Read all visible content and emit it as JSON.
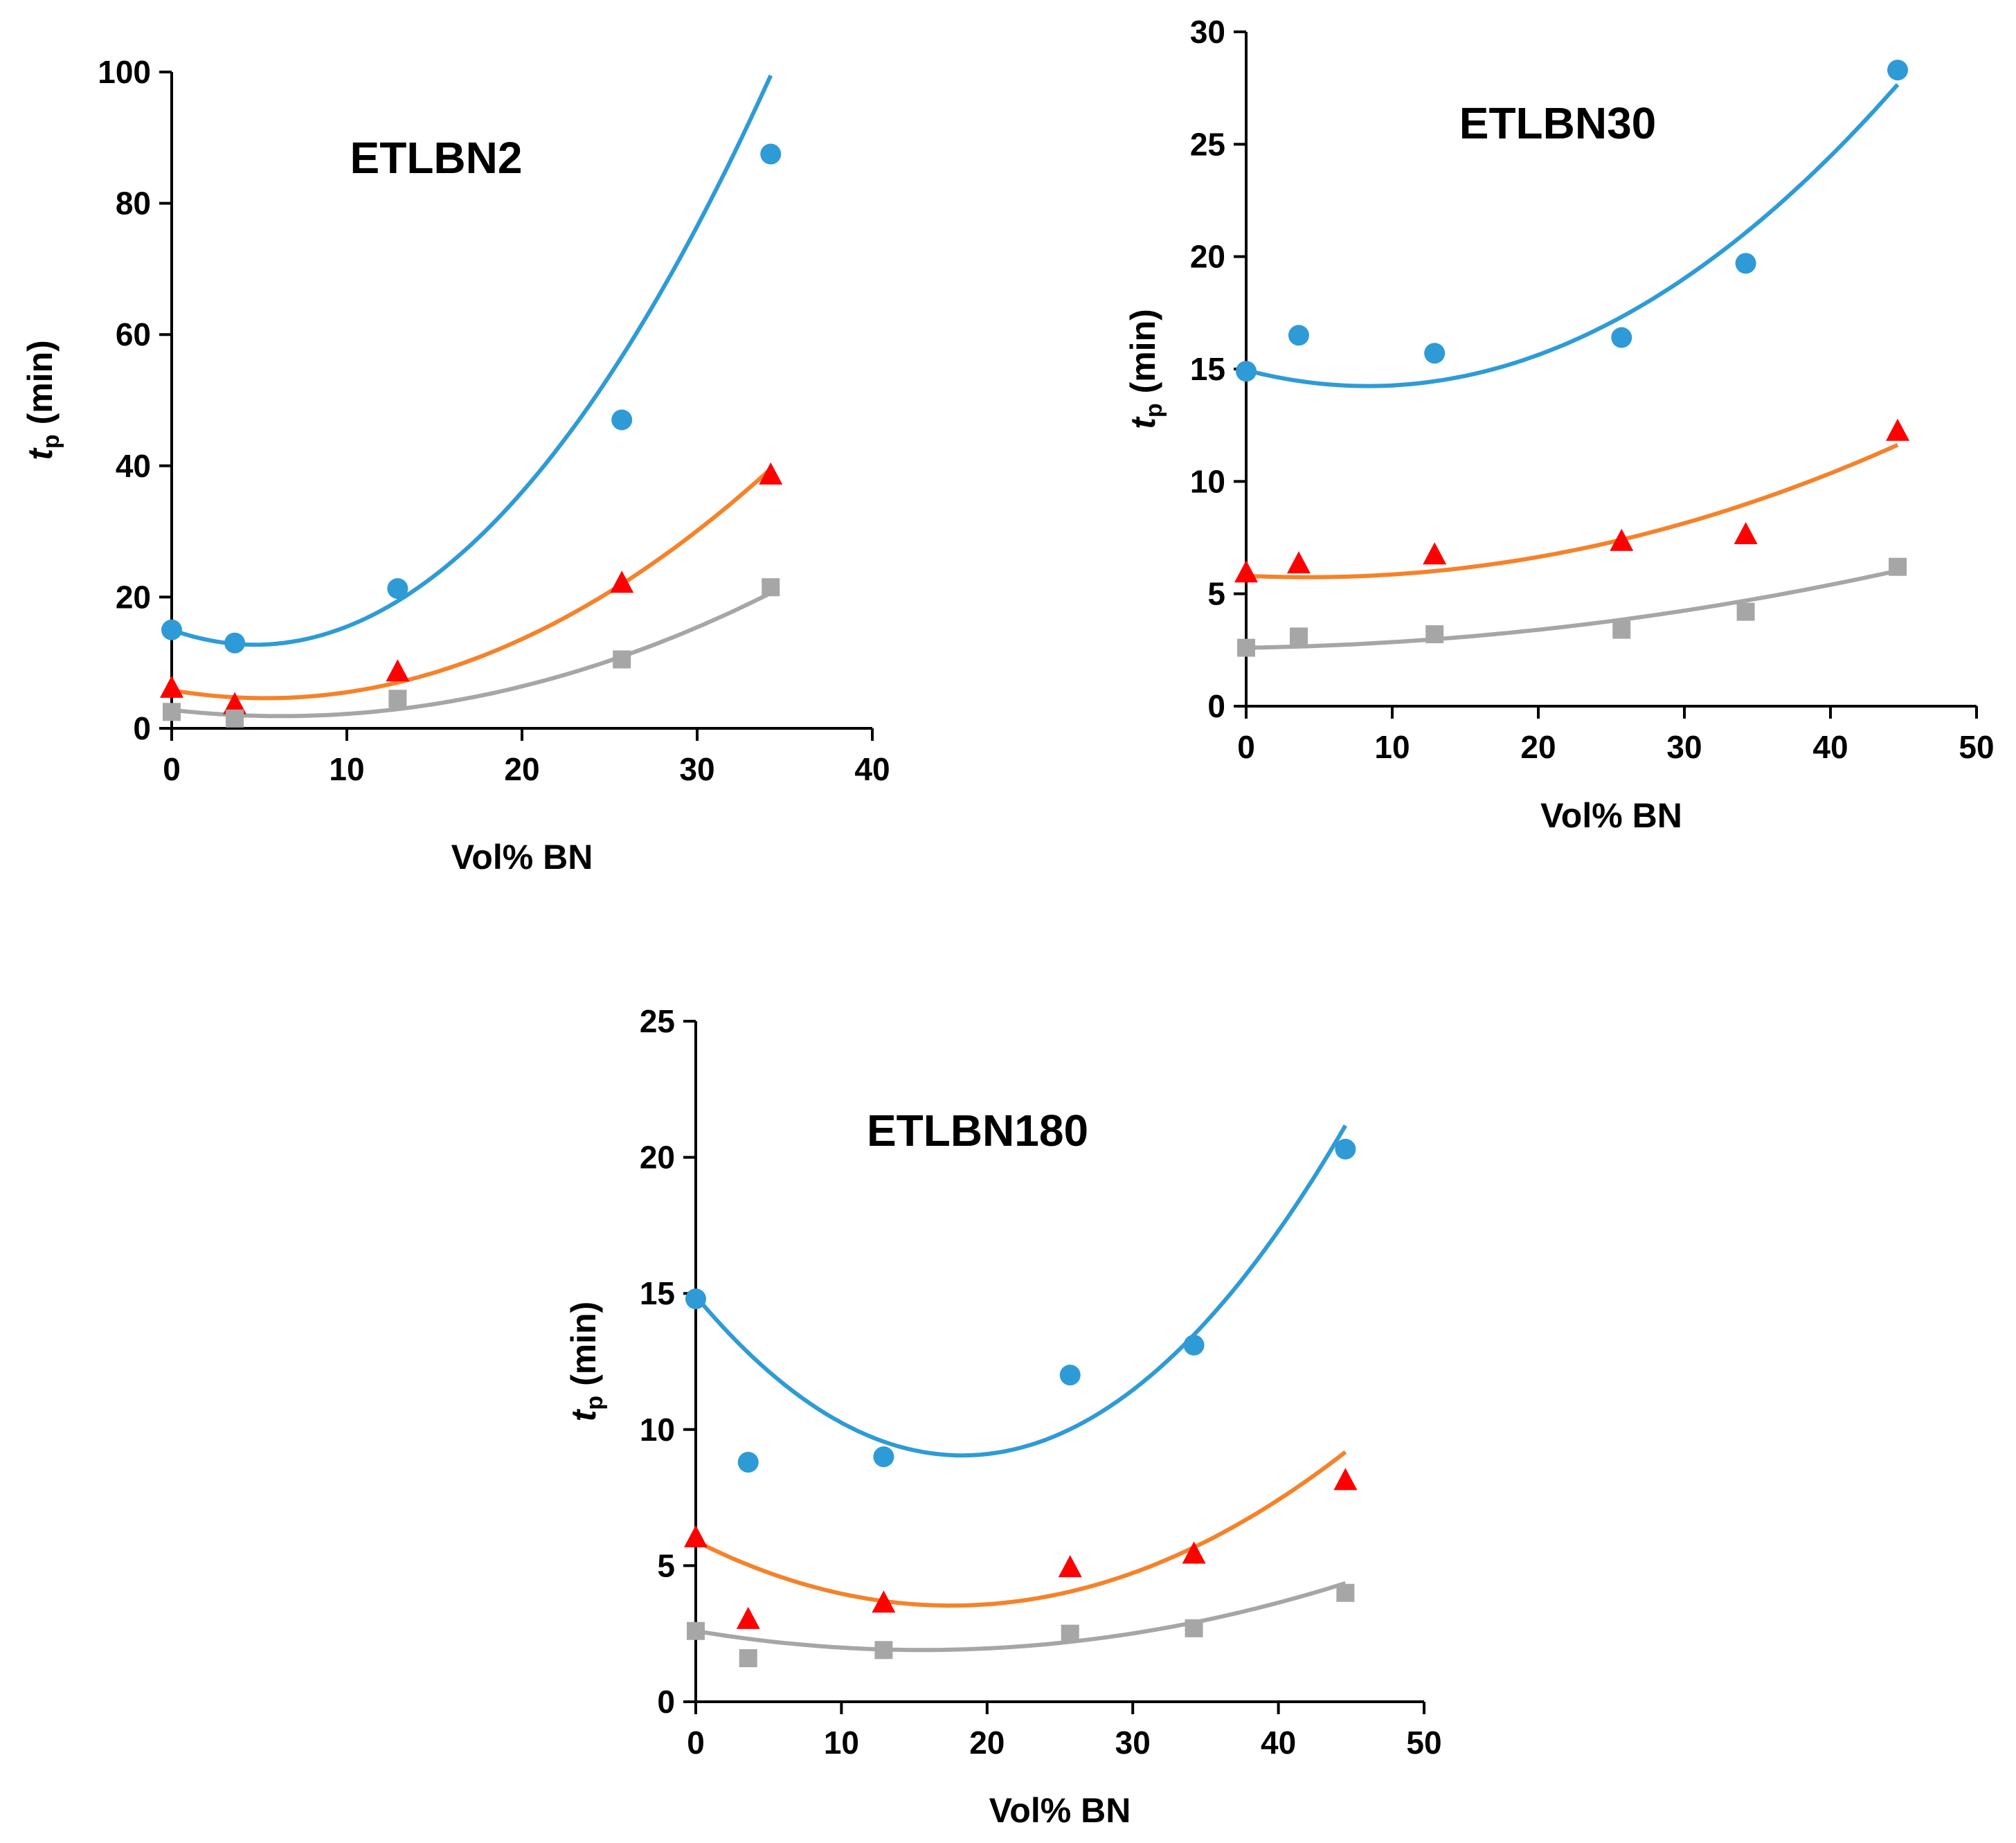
{
  "figure": {
    "shared": {
      "xlabel": "Vol% BN",
      "ylabel_main": "t",
      "ylabel_sub": "p",
      "ylabel_unit": " (min)"
    },
    "colors": {
      "circle": "#2e9bd6",
      "triangle": "#ff0000",
      "square": "#a6a6a6",
      "fit_blue": "#2e9bd6",
      "fit_orange": "#f5822a",
      "fit_gray": "#a6a6a6"
    }
  },
  "chart_data": [
    {
      "type": "scatter",
      "title": "ETLBN2",
      "xlabel": "Vol% BN",
      "ylabel": "tp (min)",
      "xlim": [
        0,
        40
      ],
      "ylim": [
        0,
        100
      ],
      "xticks": [
        "0",
        "10",
        "20",
        "30",
        "40"
      ],
      "yticks": [
        "0",
        "20",
        "40",
        "60",
        "80",
        "100"
      ],
      "series": [
        {
          "name": "circle",
          "marker": "circle",
          "x": [
            0,
            3.6,
            12.9,
            25.7,
            34.2
          ],
          "y": [
            15.0,
            13.0,
            21.3,
            47.0,
            87.5
          ],
          "fit": {
            "color": "fit_blue",
            "x0": 0,
            "x1": 34.2,
            "coef": [
              15.0,
              -0.95,
              0.1
            ]
          }
        },
        {
          "name": "triangle",
          "marker": "triangle",
          "x": [
            0,
            3.6,
            12.9,
            25.7,
            34.2
          ],
          "y": [
            6.0,
            3.5,
            8.5,
            22.0,
            38.5
          ],
          "fit": {
            "color": "fit_orange",
            "x0": 0,
            "x1": 34.2,
            "coef": [
              5.8,
              -0.45,
              0.042
            ]
          }
        },
        {
          "name": "square",
          "marker": "square",
          "x": [
            0,
            3.6,
            12.9,
            25.7,
            34.2
          ],
          "y": [
            2.5,
            1.5,
            4.5,
            10.5,
            21.5
          ],
          "fit": {
            "color": "fit_gray",
            "x0": 0,
            "x1": 34.2,
            "coef": [
              2.8,
              -0.3,
              0.024
            ]
          }
        }
      ]
    },
    {
      "type": "scatter",
      "title": "ETLBN30",
      "xlabel": "Vol% BN",
      "ylabel": "tp (min)",
      "xlim": [
        0,
        50
      ],
      "ylim": [
        0,
        30
      ],
      "xticks": [
        "0",
        "10",
        "20",
        "30",
        "40",
        "50"
      ],
      "yticks": [
        "0",
        "5",
        "10",
        "15",
        "20",
        "25",
        "30"
      ],
      "series": [
        {
          "name": "circle",
          "marker": "circle",
          "x": [
            0,
            3.6,
            12.9,
            25.7,
            34.2,
            44.6
          ],
          "y": [
            14.9,
            16.5,
            15.7,
            16.4,
            19.7,
            28.3
          ],
          "fit": {
            "color": "fit_blue",
            "x0": 0,
            "x1": 44.6,
            "coef": [
              14.95,
              -0.17,
              0.0102
            ]
          }
        },
        {
          "name": "triangle",
          "marker": "triangle",
          "x": [
            0,
            3.6,
            12.9,
            25.7,
            34.2,
            44.6
          ],
          "y": [
            5.9,
            6.3,
            6.7,
            7.3,
            7.6,
            12.2
          ],
          "fit": {
            "color": "fit_orange",
            "x0": 0,
            "x1": 44.6,
            "coef": [
              5.8,
              -0.03,
              0.0036
            ]
          }
        },
        {
          "name": "square",
          "marker": "square",
          "x": [
            0,
            3.6,
            12.9,
            25.7,
            34.2,
            44.6
          ],
          "y": [
            2.6,
            3.1,
            3.2,
            3.4,
            4.2,
            6.2
          ],
          "fit": {
            "color": "fit_gray",
            "x0": 0,
            "x1": 44.6,
            "coef": [
              2.6,
              0.01,
              0.0015
            ]
          }
        }
      ]
    },
    {
      "type": "scatter",
      "title": "ETLBN180",
      "xlabel": "Vol% BN",
      "ylabel": "tp (min)",
      "xlim": [
        0,
        50
      ],
      "ylim": [
        0,
        25
      ],
      "xticks": [
        "0",
        "10",
        "20",
        "30",
        "40",
        "50"
      ],
      "yticks": [
        "0",
        "5",
        "10",
        "15",
        "20",
        "25"
      ],
      "series": [
        {
          "name": "circle",
          "marker": "circle",
          "x": [
            0,
            3.6,
            12.9,
            25.7,
            34.2,
            44.6
          ],
          "y": [
            14.8,
            8.8,
            9.0,
            12.0,
            13.1,
            20.3
          ],
          "fit": {
            "color": "fit_blue",
            "x0": 0,
            "x1": 44.6,
            "coef": [
              14.9,
              -0.64,
              0.0175
            ]
          }
        },
        {
          "name": "triangle",
          "marker": "triangle",
          "x": [
            0,
            3.6,
            12.9,
            25.7,
            34.2,
            44.6
          ],
          "y": [
            6.0,
            3.0,
            3.6,
            4.9,
            5.4,
            8.1
          ],
          "fit": {
            "color": "fit_orange",
            "x0": 0,
            "x1": 44.6,
            "coef": [
              5.9,
              -0.27,
              0.0077
            ]
          }
        },
        {
          "name": "square",
          "marker": "square",
          "x": [
            0,
            3.6,
            12.9,
            25.7,
            34.2,
            44.6
          ],
          "y": [
            2.6,
            1.6,
            1.9,
            2.5,
            2.7,
            4.0
          ],
          "fit": {
            "color": "fit_gray",
            "x0": 0,
            "x1": 44.6,
            "coef": [
              2.6,
              -0.09,
              0.0029
            ]
          }
        }
      ]
    }
  ]
}
